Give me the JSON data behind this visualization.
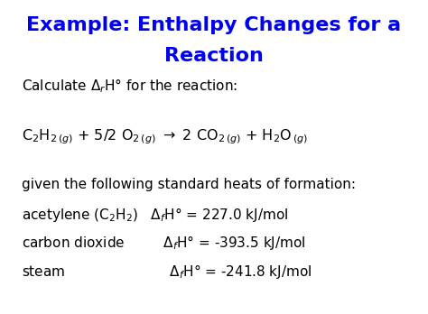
{
  "title_line1": "Example: Enthalpy Changes for a",
  "title_line2": "Reaction",
  "title_color": "#0000EE",
  "title_fontsize": 16,
  "body_color": "#000000",
  "body_fontsize": 11,
  "background_color": "#FFFFFF",
  "fig_width": 4.74,
  "fig_height": 3.48,
  "dpi": 100
}
